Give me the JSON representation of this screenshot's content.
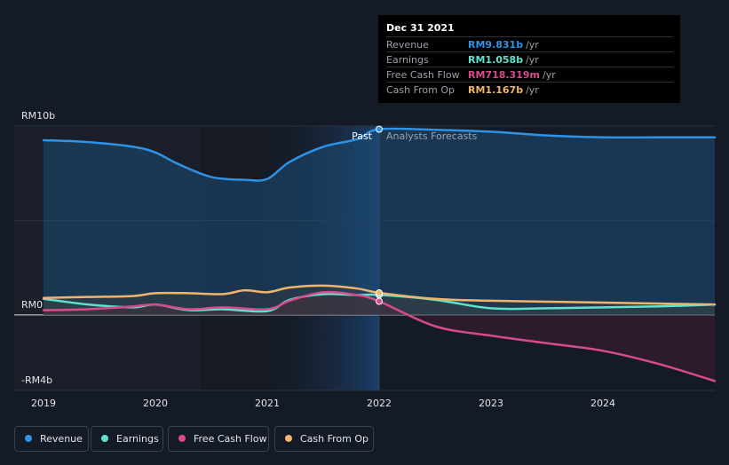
{
  "chart_data": {
    "type": "area",
    "y_labels": [
      {
        "value": 10,
        "label": "RM10b"
      },
      {
        "value": 0,
        "label": "RM0"
      },
      {
        "value": -4,
        "label": "-RM4b"
      }
    ],
    "ylim": [
      -4,
      10
    ],
    "x_ticks": [
      "2019",
      "2020",
      "2021",
      "2022",
      "2023",
      "2024"
    ],
    "past_label": "Past",
    "forecast_label": "Analysts Forecasts",
    "divider_x": 2022.0,
    "series": [
      {
        "name": "Revenue",
        "color": "#2e93e6",
        "x": [
          2019.0,
          2019.4,
          2019.8,
          2020.0,
          2020.2,
          2020.5,
          2020.8,
          2021.0,
          2021.2,
          2021.5,
          2021.8,
          2022.0,
          2022.5,
          2023.0,
          2023.5,
          2024.0,
          2024.5,
          2025.0
        ],
        "y": [
          9.25,
          9.15,
          8.9,
          8.6,
          8.0,
          7.3,
          7.15,
          7.2,
          8.1,
          8.9,
          9.3,
          9.83,
          9.8,
          9.7,
          9.5,
          9.4,
          9.4,
          9.4
        ]
      },
      {
        "name": "Earnings",
        "color": "#5fe1cf",
        "x": [
          2019.0,
          2019.4,
          2019.8,
          2020.0,
          2020.3,
          2020.6,
          2021.0,
          2021.2,
          2021.5,
          2021.8,
          2022.0,
          2022.5,
          2023.0,
          2023.5,
          2024.0,
          2024.5,
          2025.0
        ],
        "y": [
          0.85,
          0.55,
          0.4,
          0.55,
          0.25,
          0.3,
          0.2,
          0.8,
          1.1,
          1.05,
          1.06,
          0.8,
          0.35,
          0.35,
          0.4,
          0.45,
          0.55
        ]
      },
      {
        "name": "Free Cash Flow",
        "color": "#d74b8c",
        "x": [
          2019.0,
          2019.4,
          2019.8,
          2020.0,
          2020.3,
          2020.6,
          2021.0,
          2021.2,
          2021.5,
          2021.8,
          2022.0,
          2022.5,
          2023.0,
          2023.5,
          2024.0,
          2024.5,
          2025.0
        ],
        "y": [
          0.25,
          0.3,
          0.45,
          0.55,
          0.3,
          0.4,
          0.3,
          0.75,
          1.2,
          1.05,
          0.72,
          -0.6,
          -1.1,
          -1.5,
          -1.9,
          -2.6,
          -3.5
        ]
      },
      {
        "name": "Cash From Op",
        "color": "#f0b56a",
        "x": [
          2019.0,
          2019.4,
          2019.8,
          2020.0,
          2020.3,
          2020.6,
          2020.8,
          2021.0,
          2021.2,
          2021.5,
          2021.8,
          2022.0,
          2022.5,
          2023.0,
          2023.5,
          2024.0,
          2024.5,
          2025.0
        ],
        "y": [
          0.9,
          0.95,
          1.0,
          1.15,
          1.15,
          1.1,
          1.3,
          1.2,
          1.45,
          1.55,
          1.4,
          1.17,
          0.85,
          0.75,
          0.7,
          0.65,
          0.6,
          0.55
        ]
      }
    ],
    "tooltip": {
      "date": "Dec 31 2021",
      "rows": [
        {
          "name": "Revenue",
          "value": "RM9.831b",
          "unit": "/yr",
          "color": "#2e93e6"
        },
        {
          "name": "Earnings",
          "value": "RM1.058b",
          "unit": "/yr",
          "color": "#5fe1cf"
        },
        {
          "name": "Free Cash Flow",
          "value": "RM718.319m",
          "unit": "/yr",
          "color": "#d74b8c"
        },
        {
          "name": "Cash From Op",
          "value": "RM1.167b",
          "unit": "/yr",
          "color": "#f0b56a"
        }
      ]
    },
    "legend": [
      {
        "name": "Revenue",
        "color": "#2e93e6"
      },
      {
        "name": "Earnings",
        "color": "#5fe1cf"
      },
      {
        "name": "Free Cash Flow",
        "color": "#d74b8c"
      },
      {
        "name": "Cash From Op",
        "color": "#f0b56a"
      }
    ]
  }
}
